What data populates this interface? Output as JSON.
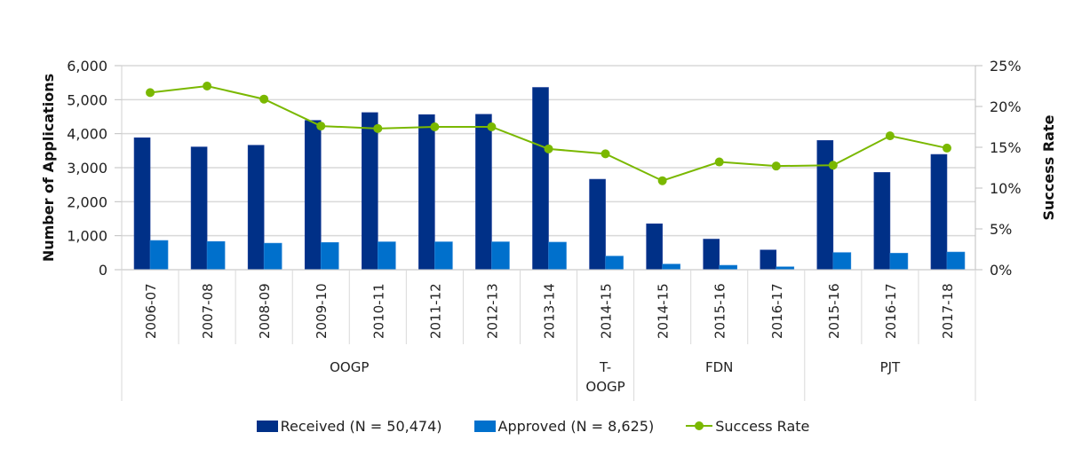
{
  "chart_data": {
    "type": "bar",
    "title": "",
    "categories": [
      "2006-07",
      "2007-08",
      "2008-09",
      "2009-10",
      "2010-11",
      "2011-12",
      "2012-13",
      "2013-14",
      "2014-15",
      "2014-15",
      "2015-16",
      "2016-17",
      "2015-16",
      "2016-17",
      "2017-18"
    ],
    "groups": [
      {
        "label": "OOGP",
        "count": 8
      },
      {
        "label": "T-OOGP",
        "count": 1
      },
      {
        "label": "FDN",
        "count": 3
      },
      {
        "label": "PJT",
        "count": 3
      }
    ],
    "series": [
      {
        "name": "Received (N = 50,474)",
        "type": "bar",
        "axis": "left",
        "color": "#003087",
        "values": [
          3880,
          3610,
          3660,
          4390,
          4620,
          4560,
          4570,
          5360,
          2660,
          1350,
          900,
          580,
          3800,
          2860,
          3390
        ]
      },
      {
        "name": "Approved (N = 8,625)",
        "type": "bar",
        "axis": "left",
        "color": "#0070cc",
        "values": [
          860,
          830,
          780,
          800,
          820,
          820,
          820,
          810,
          400,
          165,
          130,
          85,
          505,
          485,
          520
        ]
      },
      {
        "name": "Success Rate",
        "type": "line",
        "axis": "right",
        "color": "#7ab800",
        "values": [
          21.7,
          22.5,
          20.9,
          17.6,
          17.3,
          17.5,
          17.5,
          14.8,
          14.2,
          10.9,
          13.2,
          12.7,
          12.8,
          16.4,
          14.9
        ]
      }
    ],
    "ylabel": "Number of Applications",
    "ylim": [
      0,
      6000
    ],
    "yticks": [
      "0",
      "1,000",
      "2,000",
      "3,000",
      "4,000",
      "5,000",
      "6,000"
    ],
    "y2label": "Success Rate",
    "y2lim": [
      0,
      25
    ],
    "y2ticks": [
      "0%",
      "5%",
      "10%",
      "15%",
      "20%",
      "25%"
    ],
    "xlabel": "",
    "grid": true,
    "legend_position": "bottom"
  }
}
